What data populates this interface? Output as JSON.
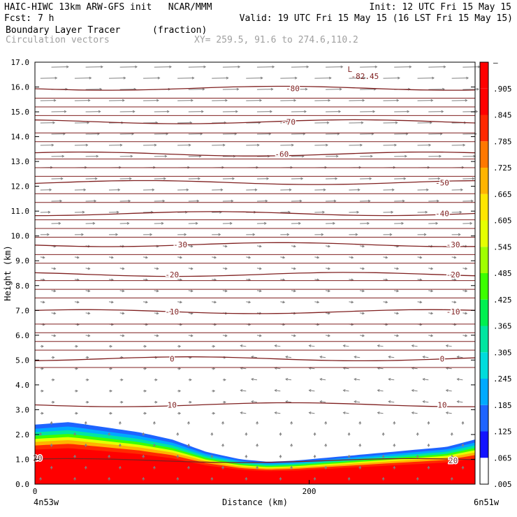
{
  "header": {
    "title_left": "HAIC-HIWC 13km ARW-GFS init   NCAR/MMM",
    "init": "Init: 12 UTC Fri 15 May 15",
    "fcst_label": "Fcst:",
    "fcst_value": "7 h",
    "valid": "Valid: 19 UTC Fri 15 May 15 (16 LST Fri 15 May 15)",
    "field_name": "Boundary Layer Tracer",
    "field_units": "(fraction)",
    "vector_label": "Circulation vectors",
    "xy_label": "XY= 259.5, 91.6 to 274.6,110.2"
  },
  "colors": {
    "contour": "#7f1f1f",
    "vector": "#808080",
    "colorbar": [
      "#ffffff",
      "#1414ff",
      "#1e64ff",
      "#00aaff",
      "#00dcdc",
      "#00e6a0",
      "#00f050",
      "#3cff00",
      "#a0ff00",
      "#e6ff00",
      "#ffe600",
      "#ffb400",
      "#ff7800",
      "#ff2800",
      "#ff0000"
    ]
  },
  "chart_data": {
    "type": "heatmap",
    "title": "Boundary Layer Tracer",
    "units": "(fraction)",
    "xlabel": "Distance (km)",
    "ylabel": "Height (km)",
    "xlim": [
      0,
      321
    ],
    "ylim": [
      0,
      17
    ],
    "x_ticks": [
      "0",
      "200"
    ],
    "x_tick_values": [
      0,
      200
    ],
    "x_endpoints": [
      "4n53w",
      "6n51w"
    ],
    "y_ticks": [
      "0.0",
      "1.0",
      "2.0",
      "3.0",
      "4.0",
      "5.0",
      "6.0",
      "7.0",
      "8.0",
      "9.0",
      "10.0",
      "11.0",
      "12.0",
      "13.0",
      "14.0",
      "15.0",
      "16.0",
      "17.0"
    ],
    "colorbar_labels": [
      ".005",
      ".065",
      ".125",
      ".185",
      ".245",
      ".305",
      ".365",
      ".425",
      ".485",
      ".545",
      ".605",
      ".665",
      ".725",
      ".785",
      ".845",
      ".905",
      "–"
    ],
    "boundary_layer_top_km": {
      "x": [
        0,
        25,
        50,
        75,
        100,
        125,
        150,
        170,
        190,
        220,
        260,
        300,
        321
      ],
      "y": [
        2.4,
        2.5,
        2.3,
        2.1,
        1.8,
        1.3,
        1.0,
        0.9,
        0.95,
        1.1,
        1.3,
        1.5,
        1.8
      ]
    },
    "temperature_contours": [
      {
        "label": "-80",
        "height_km": 15.95,
        "label_x": 188
      },
      {
        "label": "-70",
        "height_km": 14.6,
        "label_x": 185
      },
      {
        "label": "-60",
        "height_km": 13.3,
        "label_x": 180
      },
      {
        "label": "-50",
        "height_km": 12.15,
        "label_x": 297
      },
      {
        "label": "-40",
        "height_km": 10.9,
        "label_x": 297
      },
      {
        "label": "-30",
        "height_km": 9.65,
        "label_x": 106
      },
      {
        "label": "-30",
        "height_km": 9.65,
        "label_x": 305
      },
      {
        "label": "-20",
        "height_km": 8.45,
        "label_x": 100
      },
      {
        "label": "-20",
        "height_km": 8.45,
        "label_x": 305
      },
      {
        "label": "-10",
        "height_km": 6.95,
        "label_x": 100
      },
      {
        "label": "-10",
        "height_km": 6.95,
        "label_x": 305
      },
      {
        "label": "0",
        "height_km": 5.05,
        "label_x": 100
      },
      {
        "label": "0",
        "height_km": 5.05,
        "label_x": 297
      },
      {
        "label": "10",
        "height_km": 3.2,
        "label_x": 100
      },
      {
        "label": "10",
        "height_km": 3.2,
        "label_x": 297
      },
      {
        "label": "20",
        "height_km": 1.05,
        "label_x": 2
      },
      {
        "label": "20",
        "height_km": 0.95,
        "label_x": 305
      }
    ],
    "minimum_label": {
      "text": "L",
      "value": "-82.45",
      "x": 228,
      "height_km": 16.6
    }
  }
}
